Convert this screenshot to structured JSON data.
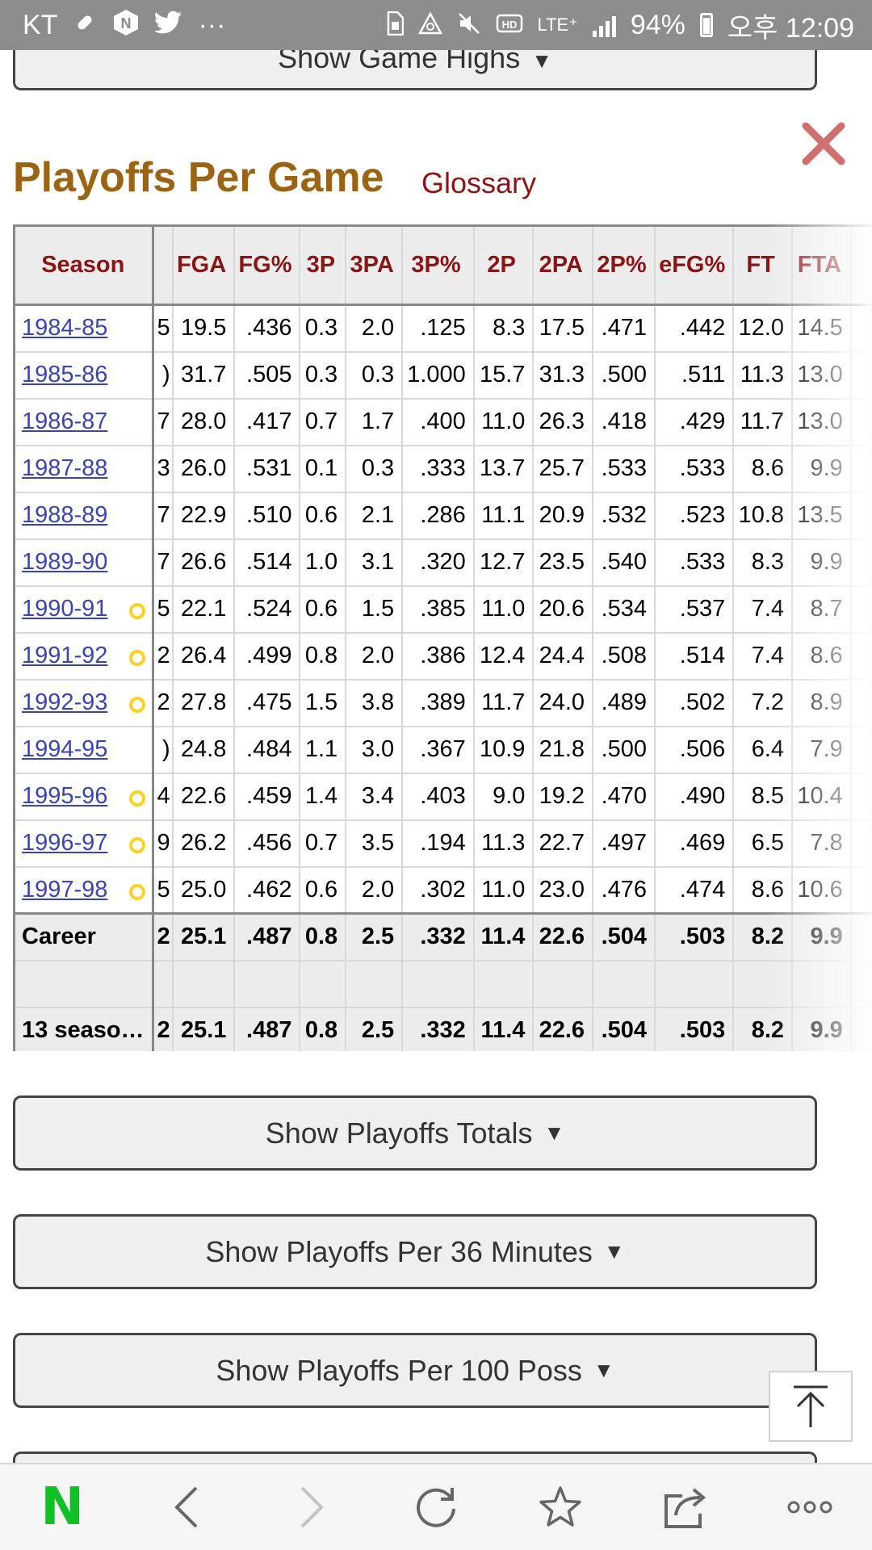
{
  "status_bar": {
    "carrier": "KT",
    "more": "···",
    "network": "LTE⁺",
    "battery": "94%",
    "time": "오후 12:09",
    "icons": [
      "bandage-icon",
      "naver-n-icon",
      "twitter-icon",
      "sim-icon",
      "alarm-icon",
      "mute-icon",
      "hd-icon",
      "signal-icon",
      "battery-icon"
    ]
  },
  "buttons": {
    "game_highs": "Show Game Highs",
    "playoffs_totals": "Show Playoffs Totals",
    "playoffs_per36": "Show Playoffs Per 36 Minutes",
    "playoffs_per100": "Show Playoffs Per 100 Poss",
    "arrow": "▼"
  },
  "section": {
    "title": "Playoffs Per Game",
    "glossary": "Glossary"
  },
  "table": {
    "columns": [
      "Season",
      "",
      "FGA",
      "FG%",
      "3P",
      "3PA",
      "3P%",
      "2P",
      "2PA",
      "2P%",
      "eFG%",
      "FT",
      "FTA",
      ""
    ],
    "rows": [
      {
        "season": "1984-85",
        "award": false,
        "cut": "5",
        "vals": [
          "19.5",
          ".436",
          "0.3",
          "2.0",
          ".125",
          "8.3",
          "17.5",
          ".471",
          ".442",
          "12.0",
          "14.5"
        ]
      },
      {
        "season": "1985-86",
        "award": false,
        "cut": ")",
        "vals": [
          "31.7",
          ".505",
          "0.3",
          "0.3",
          "1.000",
          "15.7",
          "31.3",
          ".500",
          ".511",
          "11.3",
          "13.0"
        ]
      },
      {
        "season": "1986-87",
        "award": false,
        "cut": "7",
        "vals": [
          "28.0",
          ".417",
          "0.7",
          "1.7",
          ".400",
          "11.0",
          "26.3",
          ".418",
          ".429",
          "11.7",
          "13.0"
        ]
      },
      {
        "season": "1987-88",
        "award": false,
        "cut": "3",
        "vals": [
          "26.0",
          ".531",
          "0.1",
          "0.3",
          ".333",
          "13.7",
          "25.7",
          ".533",
          ".533",
          "8.6",
          "9.9"
        ]
      },
      {
        "season": "1988-89",
        "award": false,
        "cut": "7",
        "vals": [
          "22.9",
          ".510",
          "0.6",
          "2.1",
          ".286",
          "11.1",
          "20.9",
          ".532",
          ".523",
          "10.8",
          "13.5"
        ]
      },
      {
        "season": "1989-90",
        "award": false,
        "cut": "7",
        "vals": [
          "26.6",
          ".514",
          "1.0",
          "3.1",
          ".320",
          "12.7",
          "23.5",
          ".540",
          ".533",
          "8.3",
          "9.9"
        ]
      },
      {
        "season": "1990-91",
        "award": true,
        "cut": "5",
        "vals": [
          "22.1",
          ".524",
          "0.6",
          "1.5",
          ".385",
          "11.0",
          "20.6",
          ".534",
          ".537",
          "7.4",
          "8.7"
        ]
      },
      {
        "season": "1991-92",
        "award": true,
        "cut": "2",
        "vals": [
          "26.4",
          ".499",
          "0.8",
          "2.0",
          ".386",
          "12.4",
          "24.4",
          ".508",
          ".514",
          "7.4",
          "8.6"
        ]
      },
      {
        "season": "1992-93",
        "award": true,
        "cut": "2",
        "vals": [
          "27.8",
          ".475",
          "1.5",
          "3.8",
          ".389",
          "11.7",
          "24.0",
          ".489",
          ".502",
          "7.2",
          "8.9"
        ]
      },
      {
        "season": "1994-95",
        "award": false,
        "cut": ")",
        "vals": [
          "24.8",
          ".484",
          "1.1",
          "3.0",
          ".367",
          "10.9",
          "21.8",
          ".500",
          ".506",
          "6.4",
          "7.9"
        ]
      },
      {
        "season": "1995-96",
        "award": true,
        "cut": "4",
        "vals": [
          "22.6",
          ".459",
          "1.4",
          "3.4",
          ".403",
          "9.0",
          "19.2",
          ".470",
          ".490",
          "8.5",
          "10.4"
        ]
      },
      {
        "season": "1996-97",
        "award": true,
        "cut": "9",
        "vals": [
          "26.2",
          ".456",
          "0.7",
          "3.5",
          ".194",
          "11.3",
          "22.7",
          ".497",
          ".469",
          "6.5",
          "7.8"
        ]
      },
      {
        "season": "1997-98",
        "award": true,
        "cut": "5",
        "vals": [
          "25.0",
          ".462",
          "0.6",
          "2.0",
          ".302",
          "11.0",
          "23.0",
          ".476",
          ".474",
          "8.6",
          "10.6"
        ]
      }
    ],
    "career": {
      "label": "Career",
      "cut": "2",
      "vals": [
        "25.1",
        ".487",
        "0.8",
        "2.5",
        ".332",
        "11.4",
        "22.6",
        ".504",
        ".503",
        "8.2",
        "9.9"
      ]
    },
    "seasons_total": {
      "label": "13 seaso…",
      "cut": "2",
      "vals": [
        "25.1",
        ".487",
        "0.8",
        "2.5",
        ".332",
        "11.4",
        "22.6",
        ".504",
        ".503",
        "8.2",
        "9.9"
      ]
    }
  },
  "nav": {
    "home": "N",
    "icons": [
      "naver-home-icon",
      "back-icon",
      "forward-icon",
      "refresh-icon",
      "bookmark-star-icon",
      "share-icon",
      "more-icon"
    ]
  },
  "colors": {
    "title": "#9b6413",
    "header_text": "#8b1414",
    "link": "#3b44b5",
    "award": "#ffd21f",
    "close": "#d0706e",
    "naver_green": "#11c025"
  }
}
